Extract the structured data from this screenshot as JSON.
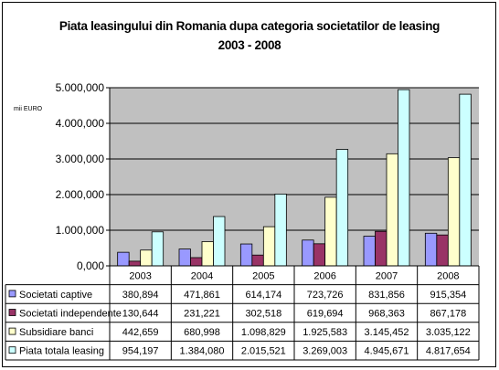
{
  "chart_data": {
    "type": "bar",
    "title_line1": "Piata leasingului din Romania dupa categoria societatilor de leasing",
    "title_line2": "2003 - 2008",
    "unit_label": "mii EURO",
    "categories": [
      "2003",
      "2004",
      "2005",
      "2006",
      "2007",
      "2008"
    ],
    "ylim": [
      0,
      5000000
    ],
    "yticks": [
      0,
      1000000,
      2000000,
      3000000,
      4000000,
      5000000
    ],
    "ytick_labels": [
      "0,000",
      "1.000,000",
      "2.000,000",
      "3.000,000",
      "4.000,000",
      "5.000,000"
    ],
    "grid": true,
    "legend": "table-below",
    "series": [
      {
        "name": "Societati captive",
        "color": "#9999ff",
        "values": [
          380894,
          471861,
          614174,
          723726,
          831856,
          915354
        ],
        "labels": [
          "380,894",
          "471,861",
          "614,174",
          "723,726",
          "831,856",
          "915,354"
        ]
      },
      {
        "name": "Societati independente",
        "color": "#993366",
        "values": [
          130644,
          231221,
          302518,
          619694,
          968363,
          867178
        ],
        "labels": [
          "130,644",
          "231,221",
          "302,518",
          "619,694",
          "968,363",
          "867,178"
        ]
      },
      {
        "name": "Subsidiare banci",
        "color": "#ffffcc",
        "values": [
          442659,
          680998,
          1098829,
          1925583,
          3145452,
          3035122
        ],
        "labels": [
          "442,659",
          "680,998",
          "1.098,829",
          "1.925,583",
          "3.145,452",
          "3.035,122"
        ]
      },
      {
        "name": "Piata totala leasing",
        "color": "#ccffff",
        "values": [
          954197,
          1384080,
          2015521,
          3269003,
          4945671,
          4817654
        ],
        "labels": [
          "954,197",
          "1.384,080",
          "2.015,521",
          "3.269,003",
          "4.945,671",
          "4.817,654"
        ]
      }
    ]
  }
}
